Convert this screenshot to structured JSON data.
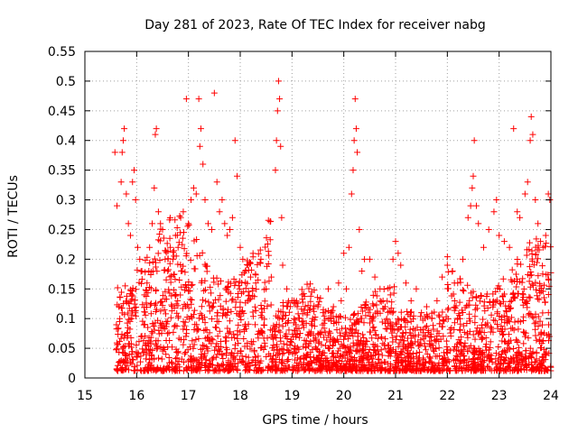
{
  "chart_data": {
    "type": "scatter",
    "title": "Day 281 of 2023, Rate Of TEC Index for receiver nabg",
    "xlabel": "GPS time / hours",
    "ylabel": "ROTI / TECUs",
    "xlim": [
      15,
      24
    ],
    "ylim": [
      0,
      0.55
    ],
    "x_ticks": [
      "15",
      "16",
      "17",
      "18",
      "19",
      "20",
      "21",
      "22",
      "23",
      "24"
    ],
    "y_ticks": [
      "0",
      "0.05",
      "0.1",
      "0.15",
      "0.2",
      "0.25",
      "0.3",
      "0.35",
      "0.4",
      "0.45",
      "0.5",
      "0.55"
    ],
    "grid": true,
    "marker": "+",
    "color": "#ff0000",
    "series": [
      {
        "points": [
          [
            15.58,
            0.38
          ],
          [
            15.62,
            0.29
          ],
          [
            15.66,
            0.12
          ],
          [
            15.7,
            0.33
          ],
          [
            15.72,
            0.38
          ],
          [
            15.74,
            0.4
          ],
          [
            15.76,
            0.42
          ],
          [
            15.8,
            0.31
          ],
          [
            15.84,
            0.26
          ],
          [
            15.88,
            0.24
          ],
          [
            15.92,
            0.33
          ],
          [
            15.95,
            0.35
          ],
          [
            15.98,
            0.3
          ],
          [
            16.02,
            0.22
          ],
          [
            16.06,
            0.2
          ],
          [
            16.1,
            0.18
          ],
          [
            16.15,
            0.14
          ],
          [
            16.2,
            0.16
          ],
          [
            16.25,
            0.22
          ],
          [
            16.3,
            0.26
          ],
          [
            16.34,
            0.32
          ],
          [
            16.36,
            0.41
          ],
          [
            16.38,
            0.42
          ],
          [
            16.42,
            0.28
          ],
          [
            16.46,
            0.26
          ],
          [
            16.5,
            0.25
          ],
          [
            16.55,
            0.2
          ],
          [
            16.6,
            0.18
          ],
          [
            16.65,
            0.22
          ],
          [
            16.7,
            0.2
          ],
          [
            16.75,
            0.24
          ],
          [
            16.8,
            0.22
          ],
          [
            16.85,
            0.27
          ],
          [
            16.9,
            0.28
          ],
          [
            16.96,
            0.47
          ],
          [
            17.0,
            0.26
          ],
          [
            17.05,
            0.3
          ],
          [
            17.1,
            0.32
          ],
          [
            17.15,
            0.31
          ],
          [
            17.2,
            0.47
          ],
          [
            17.22,
            0.39
          ],
          [
            17.24,
            0.42
          ],
          [
            17.28,
            0.36
          ],
          [
            17.32,
            0.3
          ],
          [
            17.38,
            0.26
          ],
          [
            17.45,
            0.25
          ],
          [
            17.5,
            0.48
          ],
          [
            17.55,
            0.33
          ],
          [
            17.6,
            0.28
          ],
          [
            17.65,
            0.3
          ],
          [
            17.7,
            0.26
          ],
          [
            17.75,
            0.24
          ],
          [
            17.8,
            0.25
          ],
          [
            17.85,
            0.27
          ],
          [
            17.9,
            0.4
          ],
          [
            17.94,
            0.34
          ],
          [
            18.0,
            0.22
          ],
          [
            18.05,
            0.2
          ],
          [
            18.1,
            0.18
          ],
          [
            18.15,
            0.19
          ],
          [
            18.2,
            0.17
          ],
          [
            18.3,
            0.16
          ],
          [
            18.4,
            0.2
          ],
          [
            18.5,
            0.15
          ],
          [
            18.6,
            0.17
          ],
          [
            18.68,
            0.35
          ],
          [
            18.7,
            0.4
          ],
          [
            18.72,
            0.45
          ],
          [
            18.74,
            0.5
          ],
          [
            18.76,
            0.47
          ],
          [
            18.78,
            0.39
          ],
          [
            18.8,
            0.27
          ],
          [
            18.82,
            0.19
          ],
          [
            18.9,
            0.15
          ],
          [
            19.0,
            0.13
          ],
          [
            19.1,
            0.12
          ],
          [
            19.2,
            0.14
          ],
          [
            19.3,
            0.11
          ],
          [
            19.4,
            0.1
          ],
          [
            19.5,
            0.12
          ],
          [
            19.6,
            0.11
          ],
          [
            19.7,
            0.15
          ],
          [
            19.8,
            0.12
          ],
          [
            19.9,
            0.16
          ],
          [
            19.95,
            0.13
          ],
          [
            20.0,
            0.21
          ],
          [
            20.05,
            0.15
          ],
          [
            20.1,
            0.22
          ],
          [
            20.15,
            0.31
          ],
          [
            20.18,
            0.35
          ],
          [
            20.2,
            0.4
          ],
          [
            20.22,
            0.47
          ],
          [
            20.24,
            0.42
          ],
          [
            20.26,
            0.38
          ],
          [
            20.3,
            0.25
          ],
          [
            20.35,
            0.18
          ],
          [
            20.4,
            0.2
          ],
          [
            20.5,
            0.2
          ],
          [
            20.6,
            0.17
          ],
          [
            20.7,
            0.15
          ],
          [
            20.8,
            0.12
          ],
          [
            20.9,
            0.14
          ],
          [
            20.95,
            0.2
          ],
          [
            21.0,
            0.23
          ],
          [
            21.05,
            0.21
          ],
          [
            21.1,
            0.19
          ],
          [
            21.2,
            0.16
          ],
          [
            21.3,
            0.13
          ],
          [
            21.4,
            0.15
          ],
          [
            21.5,
            0.11
          ],
          [
            21.6,
            0.12
          ],
          [
            21.7,
            0.1
          ],
          [
            21.8,
            0.13
          ],
          [
            21.9,
            0.17
          ],
          [
            22.0,
            0.19
          ],
          [
            22.1,
            0.18
          ],
          [
            22.2,
            0.16
          ],
          [
            22.3,
            0.2
          ],
          [
            22.4,
            0.27
          ],
          [
            22.45,
            0.29
          ],
          [
            22.48,
            0.32
          ],
          [
            22.5,
            0.34
          ],
          [
            22.52,
            0.4
          ],
          [
            22.56,
            0.29
          ],
          [
            22.6,
            0.26
          ],
          [
            22.7,
            0.22
          ],
          [
            22.8,
            0.25
          ],
          [
            22.9,
            0.28
          ],
          [
            22.95,
            0.3
          ],
          [
            23.0,
            0.24
          ],
          [
            23.1,
            0.23
          ],
          [
            23.2,
            0.22
          ],
          [
            23.28,
            0.42
          ],
          [
            23.35,
            0.28
          ],
          [
            23.4,
            0.27
          ],
          [
            23.5,
            0.31
          ],
          [
            23.55,
            0.33
          ],
          [
            23.6,
            0.4
          ],
          [
            23.62,
            0.44
          ],
          [
            23.65,
            0.41
          ],
          [
            23.7,
            0.3
          ],
          [
            23.75,
            0.26
          ],
          [
            23.8,
            0.23
          ],
          [
            23.85,
            0.22
          ],
          [
            23.9,
            0.24
          ],
          [
            23.95,
            0.31
          ],
          [
            23.98,
            0.3
          ]
        ]
      }
    ]
  }
}
